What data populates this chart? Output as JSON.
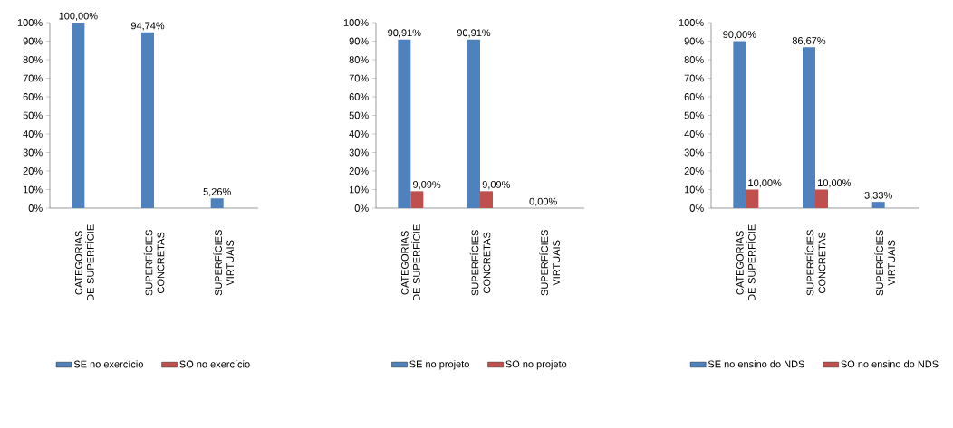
{
  "chart_data": [
    {
      "type": "bar",
      "categories": [
        "CATEGORIAS DE SUPERFÍCIE",
        "SUPERFÍCIES CONCRETAS",
        "SUPERFÍCIES VIRTUAIS"
      ],
      "series": [
        {
          "name": "SE no exercício",
          "color": "#4f81bd",
          "values": [
            100,
            94.74,
            5.26
          ],
          "value_labels": [
            "100,00%",
            "94,74%",
            "5,26%"
          ]
        },
        {
          "name": "SO no exercício",
          "color": "#c0504d",
          "values": [
            0,
            0,
            0
          ],
          "value_labels": [
            null,
            null,
            null
          ]
        }
      ],
      "ylim": [
        0,
        100
      ],
      "yticks": [
        {
          "value": 0,
          "label": "0%"
        },
        {
          "value": 10,
          "label": "10%"
        },
        {
          "value": 20,
          "label": "20%"
        },
        {
          "value": 30,
          "label": "30%"
        },
        {
          "value": 40,
          "label": "40%"
        },
        {
          "value": 50,
          "label": "50%"
        },
        {
          "value": 60,
          "label": "60%"
        },
        {
          "value": 70,
          "label": "70%"
        },
        {
          "value": 80,
          "label": "80%"
        },
        {
          "value": 90,
          "label": "90%"
        },
        {
          "value": 100,
          "label": "100%"
        }
      ],
      "legend": "bottom"
    },
    {
      "type": "bar",
      "categories": [
        "CATEGORIAS DE SUPERFÍCIE",
        "SUPERFÍCIES CONCRETAS",
        "SUPERFÍCIES VIRTUAIS"
      ],
      "series": [
        {
          "name": "SE no projeto",
          "color": "#4f81bd",
          "values": [
            90.91,
            90.91,
            0
          ],
          "value_labels": [
            "90,91%",
            "90,91%",
            "0,00%"
          ]
        },
        {
          "name": "SO no projeto",
          "color": "#c0504d",
          "values": [
            9.09,
            9.09,
            0
          ],
          "value_labels": [
            "9,09%",
            "9,09%",
            null
          ]
        }
      ],
      "ylim": [
        0,
        100
      ],
      "yticks": [
        {
          "value": 0,
          "label": "0%"
        },
        {
          "value": 10,
          "label": "10%"
        },
        {
          "value": 20,
          "label": "20%"
        },
        {
          "value": 30,
          "label": "30%"
        },
        {
          "value": 40,
          "label": "40%"
        },
        {
          "value": 50,
          "label": "50%"
        },
        {
          "value": 60,
          "label": "60%"
        },
        {
          "value": 70,
          "label": "70%"
        },
        {
          "value": 80,
          "label": "80%"
        },
        {
          "value": 90,
          "label": "90%"
        },
        {
          "value": 100,
          "label": "100%"
        }
      ],
      "legend": "bottom"
    },
    {
      "type": "bar",
      "categories": [
        "CATEGORIAS DE SUPERFÍCIE",
        "SUPERFÍCIES CONCRETAS",
        "SUPERFÍCIES VIRTUAIS"
      ],
      "series": [
        {
          "name": "SE no ensino do NDS",
          "color": "#4f81bd",
          "values": [
            90,
            86.67,
            3.33
          ],
          "value_labels": [
            "90,00%",
            "86,67%",
            "3,33%"
          ]
        },
        {
          "name": "SO no ensino do NDS",
          "color": "#c0504d",
          "values": [
            10,
            10,
            0
          ],
          "value_labels": [
            "10,00%",
            "10,00%",
            null
          ]
        }
      ],
      "ylim": [
        0,
        100
      ],
      "yticks": [
        {
          "value": 0,
          "label": "0%"
        },
        {
          "value": 10,
          "label": "10%"
        },
        {
          "value": 20,
          "label": "20%"
        },
        {
          "value": 30,
          "label": "30%"
        },
        {
          "value": 40,
          "label": "40%"
        },
        {
          "value": 50,
          "label": "50%"
        },
        {
          "value": 60,
          "label": "60%"
        },
        {
          "value": 70,
          "label": "70%"
        },
        {
          "value": 80,
          "label": "80%"
        },
        {
          "value": 90,
          "label": "90%"
        },
        {
          "value": 100,
          "label": "100%"
        }
      ],
      "legend": "bottom"
    }
  ]
}
